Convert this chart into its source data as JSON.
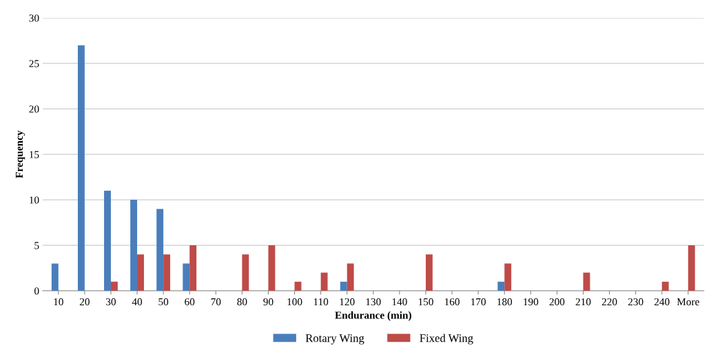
{
  "chart_data": {
    "type": "bar",
    "xlabel": "Endurance (min)",
    "ylabel": "Frequency",
    "categories": [
      "10",
      "20",
      "30",
      "40",
      "50",
      "60",
      "70",
      "80",
      "90",
      "100",
      "110",
      "120",
      "130",
      "140",
      "150",
      "160",
      "170",
      "180",
      "190",
      "200",
      "210",
      "220",
      "230",
      "240",
      "More"
    ],
    "series": [
      {
        "name": "Rotary Wing",
        "color": "#4a7ebb",
        "values": [
          3,
          27,
          11,
          10,
          9,
          3,
          0,
          0,
          0,
          0,
          0,
          1,
          0,
          0,
          0,
          0,
          0,
          1,
          0,
          0,
          0,
          0,
          0,
          0,
          0
        ]
      },
      {
        "name": "Fixed Wing",
        "color": "#be4b48",
        "values": [
          0,
          0,
          1,
          4,
          4,
          5,
          0,
          4,
          5,
          1,
          2,
          3,
          0,
          0,
          4,
          0,
          0,
          3,
          0,
          0,
          2,
          0,
          0,
          1,
          5
        ]
      }
    ],
    "ylim": [
      0,
      30
    ],
    "yticks": [
      0,
      5,
      10,
      15,
      20,
      25,
      30
    ],
    "grid": "y",
    "legend": "bottom"
  }
}
